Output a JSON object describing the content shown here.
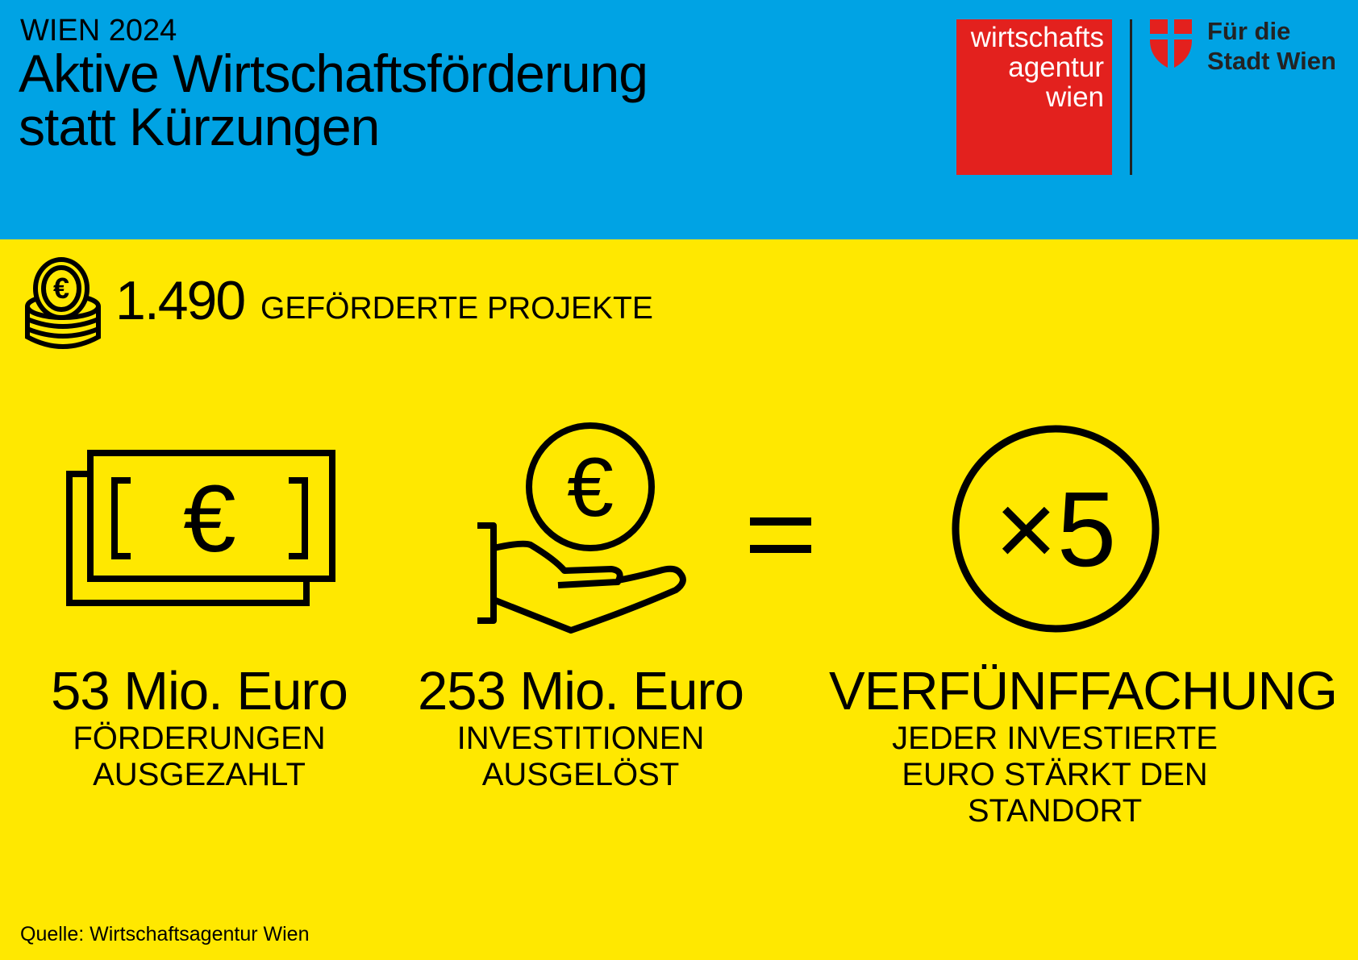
{
  "header": {
    "kicker": "WIEN 2024",
    "title_line1": "Aktive Wirtschaftsförderung",
    "title_line2": "statt Kürzungen",
    "logo_wirtschaftsagentur": [
      "wirtschafts",
      "agentur",
      "wien"
    ],
    "logo_stadt": [
      "Für die",
      "Stadt Wien"
    ]
  },
  "projects": {
    "count": "1.490",
    "label": "GEFÖRDERTE PROJEKTE",
    "icon": "coin-stack-icon"
  },
  "stats": [
    {
      "value": "53 Mio. Euro",
      "lines": [
        "FÖRDERUNGEN",
        "AUSGEZAHLT"
      ],
      "icon": "banknote-icon"
    },
    {
      "value": "253 Mio. Euro",
      "lines": [
        "INVESTITIONEN",
        "AUSGELÖST"
      ],
      "icon": "hand-coin-icon"
    },
    {
      "value": "VERFÜNFFACHUNG",
      "lines": [
        "JEDER INVESTIERTE",
        "EURO STÄRKT DEN",
        "STANDORT"
      ],
      "icon": "times-five-icon",
      "icon_text": "×5"
    }
  ],
  "source": "Quelle: Wirtschaftsagentur Wien",
  "colors": {
    "header_bg": "#00a3e4",
    "body_bg": "#ffe800",
    "logo_red": "#e3211e"
  }
}
